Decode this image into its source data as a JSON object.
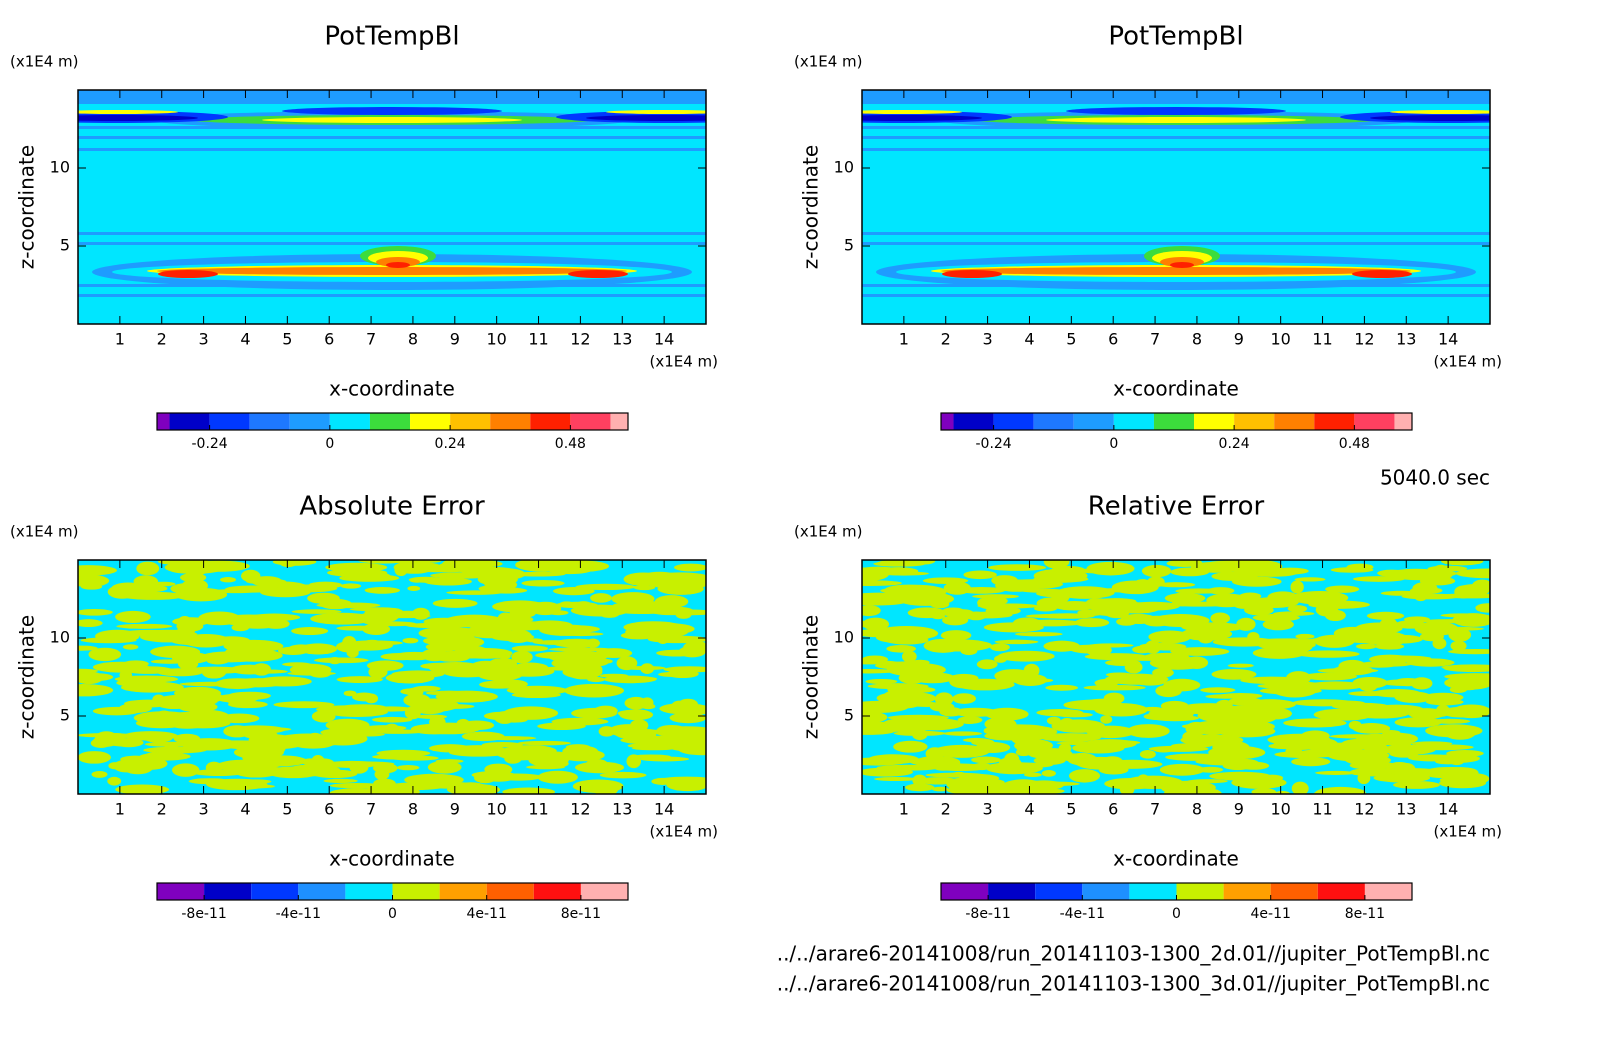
{
  "chart_data": [
    {
      "type": "contour",
      "title": "PotTempBl",
      "xlabel": "x-coordinate",
      "ylabel": "z-coordinate",
      "xunit": "(x1E4 m)",
      "yunit": "(x1E4 m)",
      "xlim": [
        0,
        15
      ],
      "ylim": [
        0,
        15
      ],
      "xticks": [
        1,
        2,
        3,
        4,
        5,
        6,
        7,
        8,
        9,
        10,
        11,
        12,
        13,
        14
      ],
      "yticks": [
        5,
        10
      ],
      "colorbar": {
        "lim": [
          -0.345,
          0.595
        ],
        "levels": [
          -0.32,
          -0.24,
          -0.16,
          -0.08,
          0,
          0.08,
          0.16,
          0.24,
          0.32,
          0.4,
          0.48,
          0.56
        ],
        "colors": [
          "#7f00bf",
          "#0000c8",
          "#0038ff",
          "#1e78ff",
          "#1e9cff",
          "#00e6ff",
          "#3cdc3c",
          "#ffff00",
          "#ffc000",
          "#ff8000",
          "#ff2000",
          "#ff4060",
          "#ffb0b0"
        ],
        "ticks": [
          -0.24,
          0,
          0.24,
          0.48
        ]
      }
    },
    {
      "type": "contour",
      "title": "PotTempBl",
      "xlabel": "x-coordinate",
      "ylabel": "z-coordinate",
      "xunit": "(x1E4 m)",
      "yunit": "(x1E4 m)",
      "xlim": [
        0,
        15
      ],
      "ylim": [
        0,
        15
      ],
      "xticks": [
        1,
        2,
        3,
        4,
        5,
        6,
        7,
        8,
        9,
        10,
        11,
        12,
        13,
        14
      ],
      "yticks": [
        5,
        10
      ],
      "colorbar": {
        "lim": [
          -0.345,
          0.595
        ],
        "levels": [
          -0.32,
          -0.24,
          -0.16,
          -0.08,
          0,
          0.08,
          0.16,
          0.24,
          0.32,
          0.4,
          0.48,
          0.56
        ],
        "colors": [
          "#7f00bf",
          "#0000c8",
          "#0038ff",
          "#1e78ff",
          "#1e9cff",
          "#00e6ff",
          "#3cdc3c",
          "#ffff00",
          "#ffc000",
          "#ff8000",
          "#ff2000",
          "#ff4060",
          "#ffb0b0"
        ],
        "ticks": [
          -0.24,
          0,
          0.24,
          0.48
        ]
      }
    },
    {
      "type": "contour",
      "title": "Absolute Error",
      "xlabel": "x-coordinate",
      "ylabel": "z-coordinate",
      "xunit": "(x1E4 m)",
      "yunit": "(x1E4 m)",
      "xlim": [
        0,
        15
      ],
      "ylim": [
        0,
        15
      ],
      "xticks": [
        1,
        2,
        3,
        4,
        5,
        6,
        7,
        8,
        9,
        10,
        11,
        12,
        13,
        14
      ],
      "yticks": [
        5,
        10
      ],
      "colorbar": {
        "lim": [
          -1e-10,
          1e-10
        ],
        "levels": [
          -8e-11,
          -6e-11,
          -4e-11,
          -2e-11,
          0,
          2e-11,
          4e-11,
          6e-11,
          8e-11
        ],
        "colors": [
          "#7f00bf",
          "#0000c8",
          "#0038ff",
          "#1e90ff",
          "#00e6ff",
          "#c8f000",
          "#ffa000",
          "#ff6000",
          "#ff1010",
          "#ffb0b0"
        ],
        "ticks": [
          -8e-11,
          -4e-11,
          0,
          4e-11,
          8e-11
        ]
      }
    },
    {
      "type": "contour",
      "title": "Relative Error",
      "xlabel": "x-coordinate",
      "ylabel": "z-coordinate",
      "xunit": "(x1E4 m)",
      "yunit": "(x1E4 m)",
      "xlim": [
        0,
        15
      ],
      "ylim": [
        0,
        15
      ],
      "xticks": [
        1,
        2,
        3,
        4,
        5,
        6,
        7,
        8,
        9,
        10,
        11,
        12,
        13,
        14
      ],
      "yticks": [
        5,
        10
      ],
      "colorbar": {
        "lim": [
          -1e-10,
          1e-10
        ],
        "levels": [
          -8e-11,
          -6e-11,
          -4e-11,
          -2e-11,
          0,
          2e-11,
          4e-11,
          6e-11,
          8e-11
        ],
        "colors": [
          "#7f00bf",
          "#0000c8",
          "#0038ff",
          "#1e90ff",
          "#00e6ff",
          "#c8f000",
          "#ffa000",
          "#ff6000",
          "#ff1010",
          "#ffb0b0"
        ],
        "ticks": [
          -8e-11,
          -4e-11,
          0,
          4e-11,
          8e-11
        ]
      }
    }
  ],
  "time": "5040.0 sec",
  "files": [
    "../../arare6-20141008/run_20141103-1300_2d.01//jupiter_PotTempBl.nc",
    "../../arare6-20141008/run_20141103-1300_3d.01//jupiter_PotTempBl.nc"
  ]
}
